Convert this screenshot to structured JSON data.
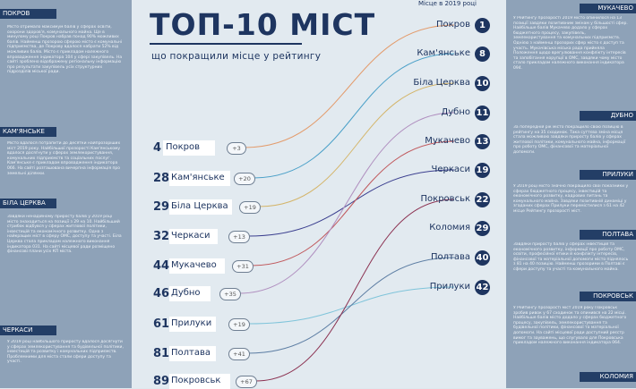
{
  "title": "ТОП-10 МІСТ",
  "subtitle": "що покращили місце у рейтингу",
  "place_header": "Місце в 2019 році",
  "colors": {
    "navy": "#1e3560",
    "panel": "#8ea2b8",
    "header": "#233e66",
    "bg": "#e2eaf0"
  },
  "cities": [
    {
      "name": "Покров",
      "prev": "4",
      "now": "1",
      "change": "+3",
      "color": "#e39b6b"
    },
    {
      "name": "Кам'янське",
      "prev": "28",
      "now": "8",
      "change": "+20",
      "color": "#4ba0c8"
    },
    {
      "name": "Біла Церква",
      "prev": "29",
      "now": "10",
      "change": "+19",
      "color": "#d4b56a"
    },
    {
      "name": "Черкаси",
      "prev": "32",
      "now": "19",
      "change": "+13",
      "color": "#3b3f8f"
    },
    {
      "name": "Мукачево",
      "prev": "44",
      "now": "13",
      "change": "+31",
      "color": "#c0585c"
    },
    {
      "name": "Дубно",
      "prev": "46",
      "now": "11",
      "change": "+35",
      "color": "#b08fbf"
    },
    {
      "name": "Прилуки",
      "prev": "61",
      "now": "42",
      "change": "+19",
      "color": "#7fc4da"
    },
    {
      "name": "Полтава",
      "prev": "81",
      "now": "40",
      "change": "+41",
      "color": "#5c7da3"
    },
    {
      "name": "Покровськ",
      "prev": "89",
      "now": "22",
      "change": "+67",
      "color": "#8b3050"
    },
    {
      "name": "Коломия",
      "prev": "",
      "now": "29",
      "change": "",
      "color": "#4b6f97"
    }
  ],
  "left_sections": [
    {
      "header": "ПОКРОВ",
      "text": "Місто отримало максимум балів у сферах освіти, охорони здоров'я, комунального майна. Ще в минулому році Покров набрав понад 90% можливих балів. Найменш прозорою сферою місто є комунальні підприємства, де Покрову вдалося набрати 52% від можливих балів. Місто є прикладом належного впровадження індикатора 104 у сфері закупівель. На сайті зроблено відображену регіональну інформацію про результати закупівель усіх структурних підрозділів міської ради."
    },
    {
      "header": "КАМ'ЯНСЬКЕ",
      "text": "Місто вдалося потрапити до десятки найпрозоріших міст 2019 року. Найбільшої прозорості Кам'янському вдалося досягнути у сферах землекористування, комунальних підприємств та соціальних послуг. Кам'янське є прикладом впровадження індикатора 066. На сайті розташована вичерпна інформація про земельні ділянки."
    },
    {
      "header": "БІЛА ЦЕРКВА",
      "text": "Завдяки ненадійному приросту балів у 2019 році місто знаходиться на позиції з 29 на 10. Найбільший стрибок відбувся у сферах житлової політики, інвестицій та економічного розвитку. Одна з найкращих міст в сферу ОМС, доступу та участі. Біла Церква стала прикладом належного виконання індикатора 031. На сайті місцевої ради розміщено фінансові плани усіх КП міста."
    },
    {
      "header": "ЧЕРКАСИ",
      "text": "У 2019 році найбільшого приросту вдалося досягнути у сферах землекористування та будівельної політики, інвестицій та розвитку і комунальних підприємств. Проблемними для міста стали сфери доступу та участі."
    }
  ],
  "right_sections": [
    {
      "header": "МУКАЧЕВО",
      "text": "У Рейтингу прозорості 2019 місто опинилося на 13 позиції завдяки позитивним змінам у більшості сфер. Найбільше балів Мукачево додало у сферах бюджетного процесу, закупівель, землекористування та комунальних підприємств. Однією з найменш прозорих сфер місто є доступ та участь. Мукачівська міська рада прийняла Положення щодо врегулювання конфлікту інтересів та запобігання корупції в ОМС, завдяки чому місто стало прикладом належного виконання індикатора 094."
    },
    {
      "header": "ДУБНО",
      "text": "За попередній рік місто покращило свою позицію в рейтингу на 35 сходинок. Така суттєва зміна місця стала можливою завдяки приросту балів у сферах житлової політики, комунального майна, інформації про роботу ОМС, фінансової та матеріальної допомоги."
    },
    {
      "header": "ПРИЛУКИ",
      "text": "У 2019 році місто значно покращило свої показники у сферах бюджетного процесу, інвестицій та економічного розвитку, кадрових питань та комунального майна. Завдяки позитивній динаміці у згаданих сферах Прилуки перемістилися з 61 на 42 місце Рейтингу прозорості міст."
    },
    {
      "header": "ПОЛТАВА",
      "text": "Завдяки приросту балів у сферах інвестицій та економічного розвитку, інформації про роботу ОМС, освіти, професійної етики й конфлікту інтересів, фінансової та матеріальної допомоги місто піднялось з 81 на 40 позицію. Найменш прозорими в Полтаві є сфери доступу та участі та комунального майна."
    },
    {
      "header": "ПОКРОВСЬК",
      "text": "У Рейтингу прозорості міст 2019 року Покровськ зробив ривок у 67 сходинок та опинився на 22 місці. Найбільше балів місто додало у сферах бюджетного процесу, закупівель, землекористування та будівельної політики, фінансової та матеріальної допомоги. На сайті місцевої ради доступний реєстр вимог та зауважень, що слугувало для Покровська прикладом належного виконання індикатора 064."
    },
    {
      "header": "КОЛОМИЯ",
      "text": ""
    }
  ]
}
